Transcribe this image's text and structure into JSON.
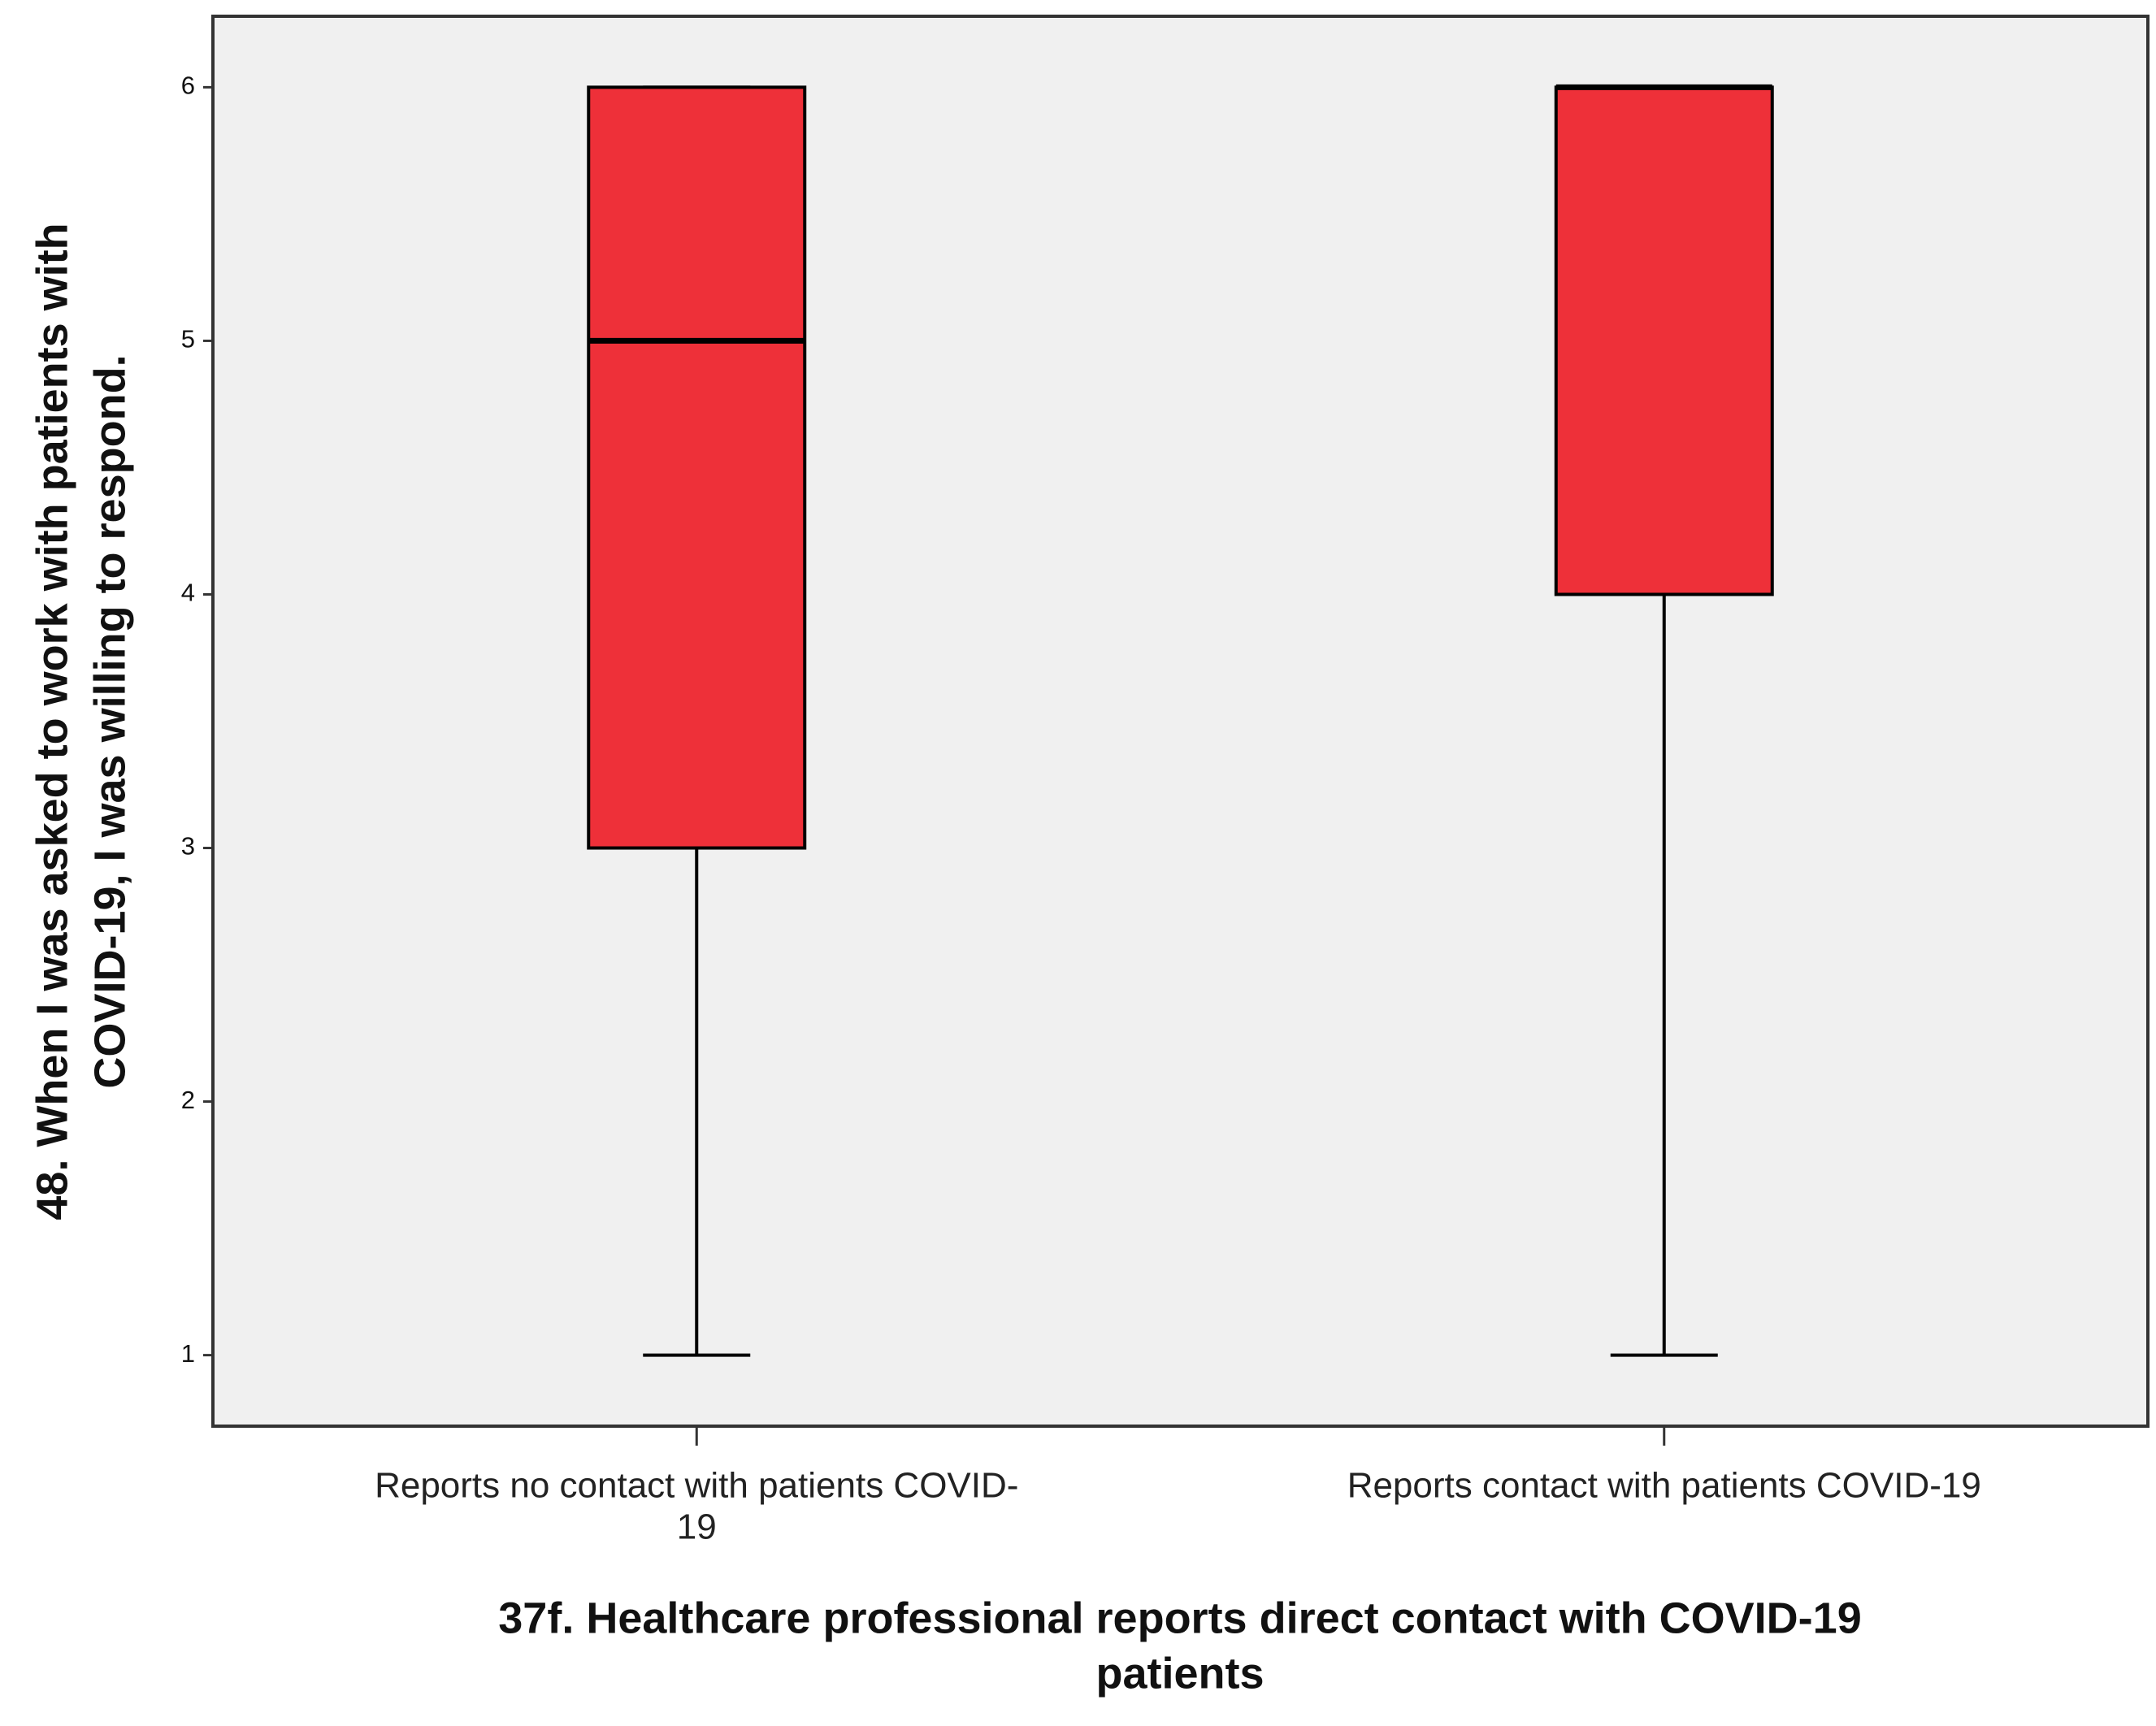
{
  "chart_data": {
    "type": "box",
    "categories": [
      [
        "Reports no contact with patients COVID-",
        "19"
      ],
      [
        "Reports contact with patients COVID-19"
      ]
    ],
    "x_label": [
      "37f. Healthcare professional reports direct contact with COVID-19",
      "patients"
    ],
    "y_label": [
      "48. When I was asked to work with patients with",
      "COVID-19, I was willing to respond."
    ],
    "min": [
      1,
      1
    ],
    "q1": [
      3,
      4
    ],
    "median": [
      5,
      6
    ],
    "q3": [
      6,
      6
    ],
    "max": [
      6,
      6
    ],
    "color": "#ee3039",
    "background": "#f0f0f0",
    "ylim": [
      0.72,
      6.28
    ],
    "yticks": [
      1,
      2,
      3,
      4,
      5,
      6
    ]
  }
}
